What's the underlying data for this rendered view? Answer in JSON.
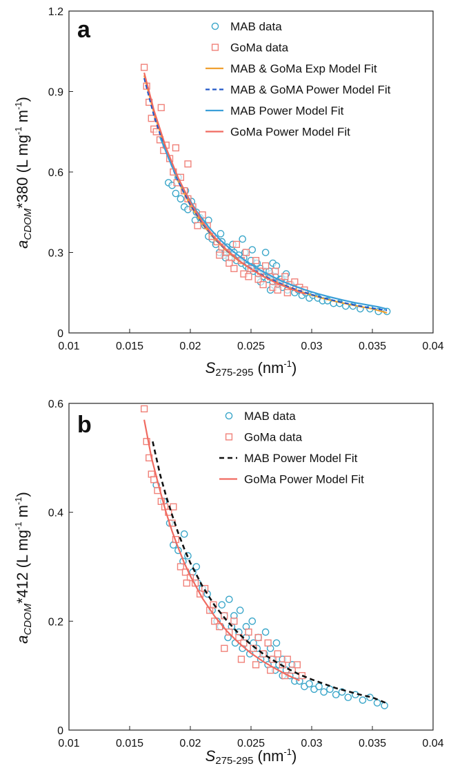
{
  "chart_data": [
    {
      "id": "a",
      "type": "scatter",
      "panel_label": "a",
      "xlabel": {
        "main": "S",
        "sub": "275-295",
        "unit_pre": " (nm",
        "unit_sup": "-1",
        "unit_post": ")"
      },
      "ylabel": {
        "main": "a",
        "sub": "CDOM",
        "rest": "*380 (L mg",
        "sup1": "-1",
        "mid": " m",
        "sup2": "-1",
        "end": ")"
      },
      "xlim": [
        0.01,
        0.04
      ],
      "ylim": [
        0,
        1.2
      ],
      "xticks": [
        "0.01",
        "0.015",
        "0.02",
        "0.025",
        "0.03",
        "0.035",
        "0.04"
      ],
      "xtick_values": [
        0.01,
        0.015,
        0.02,
        0.025,
        0.03,
        0.035,
        0.04
      ],
      "yticks": [
        "0",
        "0.3",
        "0.6",
        "0.9",
        "1.2"
      ],
      "ytick_values": [
        0,
        0.3,
        0.6,
        0.9,
        1.2
      ],
      "legend_position": "top-right",
      "grid": false,
      "series": [
        {
          "name": "MAB data",
          "kind": "scatter",
          "marker": "circle",
          "color": "#3aa6c9",
          "x": [
            0.0182,
            0.0185,
            0.0188,
            0.019,
            0.0192,
            0.0195,
            0.0198,
            0.0201,
            0.0204,
            0.0208,
            0.0212,
            0.0215,
            0.0218,
            0.0221,
            0.0224,
            0.0226,
            0.0228,
            0.023,
            0.0232,
            0.0234,
            0.0236,
            0.0238,
            0.024,
            0.0242,
            0.0244,
            0.0246,
            0.0248,
            0.025,
            0.0252,
            0.0254,
            0.0256,
            0.0258,
            0.026,
            0.0262,
            0.0264,
            0.0266,
            0.0268,
            0.027,
            0.0272,
            0.0274,
            0.0276,
            0.0278,
            0.028,
            0.0283,
            0.0286,
            0.0289,
            0.0292,
            0.0295,
            0.0298,
            0.0301,
            0.0305,
            0.0309,
            0.0313,
            0.0318,
            0.0323,
            0.0328,
            0.0334,
            0.034,
            0.0348,
            0.0355,
            0.0362,
            0.0225,
            0.0235,
            0.0245,
            0.0255,
            0.0265,
            0.0275,
            0.0285,
            0.0215,
            0.0205,
            0.0196,
            0.0262,
            0.0268,
            0.0251,
            0.0243,
            0.0229,
            0.0271,
            0.0279,
            0.0258,
            0.0266
          ],
          "y": [
            0.56,
            0.55,
            0.52,
            0.58,
            0.5,
            0.47,
            0.46,
            0.49,
            0.42,
            0.43,
            0.4,
            0.36,
            0.35,
            0.33,
            0.3,
            0.34,
            0.29,
            0.32,
            0.28,
            0.31,
            0.3,
            0.27,
            0.29,
            0.26,
            0.28,
            0.25,
            0.24,
            0.27,
            0.23,
            0.26,
            0.22,
            0.24,
            0.21,
            0.23,
            0.2,
            0.22,
            0.19,
            0.21,
            0.18,
            0.2,
            0.17,
            0.19,
            0.16,
            0.18,
            0.15,
            0.16,
            0.14,
            0.15,
            0.13,
            0.14,
            0.13,
            0.12,
            0.12,
            0.11,
            0.11,
            0.1,
            0.1,
            0.09,
            0.09,
            0.08,
            0.08,
            0.37,
            0.33,
            0.3,
            0.26,
            0.23,
            0.2,
            0.17,
            0.42,
            0.45,
            0.53,
            0.3,
            0.26,
            0.31,
            0.35,
            0.28,
            0.25,
            0.22,
            0.19,
            0.16
          ]
        },
        {
          "name": "GoMa data",
          "kind": "scatter",
          "marker": "square",
          "color": "#f08078",
          "x": [
            0.0162,
            0.0164,
            0.0166,
            0.0168,
            0.017,
            0.0172,
            0.0175,
            0.0178,
            0.018,
            0.0183,
            0.0186,
            0.0189,
            0.0192,
            0.0195,
            0.0198,
            0.0202,
            0.0206,
            0.021,
            0.0214,
            0.0218,
            0.0222,
            0.0226,
            0.023,
            0.0234,
            0.0238,
            0.0242,
            0.0246,
            0.025,
            0.0254,
            0.0258,
            0.0262,
            0.0266,
            0.027,
            0.0274,
            0.0278,
            0.0282,
            0.0286,
            0.029,
            0.0294,
            0.0232,
            0.0244,
            0.0256,
            0.0268,
            0.028,
            0.0224,
            0.0236,
            0.0248,
            0.026,
            0.0272,
            0.0198,
            0.0188,
            0.0176
          ],
          "y": [
            0.99,
            0.92,
            0.86,
            0.8,
            0.76,
            0.75,
            0.72,
            0.68,
            0.7,
            0.65,
            0.6,
            0.56,
            0.58,
            0.53,
            0.5,
            0.47,
            0.4,
            0.44,
            0.4,
            0.36,
            0.34,
            0.32,
            0.3,
            0.28,
            0.33,
            0.27,
            0.3,
            0.24,
            0.27,
            0.23,
            0.25,
            0.21,
            0.23,
            0.19,
            0.21,
            0.18,
            0.19,
            0.17,
            0.16,
            0.26,
            0.22,
            0.2,
            0.17,
            0.15,
            0.29,
            0.24,
            0.21,
            0.18,
            0.16,
            0.63,
            0.69,
            0.84
          ]
        },
        {
          "name": "MAB & GoMa Exp Model Fit",
          "kind": "line",
          "color": "#f0a030",
          "dash": "",
          "width": 2.2,
          "x": [
            0.0162,
            0.017,
            0.018,
            0.019,
            0.02,
            0.021,
            0.022,
            0.023,
            0.024,
            0.025,
            0.026,
            0.027,
            0.028,
            0.029,
            0.03,
            0.031,
            0.032,
            0.033,
            0.034,
            0.035,
            0.0362
          ],
          "y": [
            0.96,
            0.82,
            0.68,
            0.565,
            0.475,
            0.405,
            0.35,
            0.305,
            0.268,
            0.238,
            0.212,
            0.19,
            0.171,
            0.155,
            0.141,
            0.128,
            0.117,
            0.107,
            0.098,
            0.09,
            0.075
          ]
        },
        {
          "name": "MAB & GoMA Power Model Fit",
          "kind": "line",
          "color": "#2158c8",
          "dash": "6,4",
          "width": 2.2,
          "x": [
            0.0162,
            0.017,
            0.018,
            0.019,
            0.02,
            0.021,
            0.022,
            0.023,
            0.024,
            0.025,
            0.026,
            0.027,
            0.028,
            0.029,
            0.03,
            0.031,
            0.032,
            0.033,
            0.034,
            0.035,
            0.0362
          ],
          "y": [
            0.95,
            0.81,
            0.675,
            0.565,
            0.478,
            0.408,
            0.352,
            0.307,
            0.27,
            0.24,
            0.214,
            0.192,
            0.173,
            0.157,
            0.143,
            0.13,
            0.119,
            0.109,
            0.1,
            0.092,
            0.084
          ]
        },
        {
          "name": "MAB Power Model Fit",
          "kind": "line",
          "color": "#3a9fd8",
          "dash": "",
          "width": 2.2,
          "x": [
            0.0175,
            0.0185,
            0.0195,
            0.0205,
            0.0215,
            0.0225,
            0.0235,
            0.0245,
            0.0255,
            0.0265,
            0.0275,
            0.0285,
            0.0295,
            0.0305,
            0.0315,
            0.0325,
            0.0335,
            0.0345,
            0.0355,
            0.0362
          ],
          "y": [
            0.73,
            0.62,
            0.53,
            0.455,
            0.395,
            0.345,
            0.305,
            0.27,
            0.241,
            0.216,
            0.194,
            0.176,
            0.16,
            0.146,
            0.134,
            0.123,
            0.113,
            0.105,
            0.097,
            0.089
          ]
        },
        {
          "name": "GoMa Power Model Fit",
          "kind": "line",
          "color": "#f06a60",
          "dash": "",
          "width": 2.2,
          "x": [
            0.0162,
            0.017,
            0.018,
            0.019,
            0.02,
            0.021,
            0.022,
            0.023,
            0.024,
            0.025,
            0.026,
            0.027,
            0.028,
            0.029,
            0.0295
          ],
          "y": [
            0.97,
            0.83,
            0.69,
            0.578,
            0.487,
            0.414,
            0.356,
            0.309,
            0.27,
            0.238,
            0.211,
            0.188,
            0.169,
            0.152,
            0.145
          ]
        }
      ]
    },
    {
      "id": "b",
      "type": "scatter",
      "panel_label": "b",
      "xlabel": {
        "main": "S",
        "sub": "275-295",
        "unit_pre": " (nm",
        "unit_sup": "-1",
        "unit_post": ")"
      },
      "ylabel": {
        "main": "a",
        "sub": "CDOM",
        "rest": "*412 (L mg",
        "sup1": "-1",
        "mid": " m",
        "sup2": "-1",
        "end": ")"
      },
      "xlim": [
        0.01,
        0.04
      ],
      "ylim": [
        0,
        0.6
      ],
      "xticks": [
        "0.01",
        "0.015",
        "0.02",
        "0.025",
        "0.03",
        "0.035",
        "0.04"
      ],
      "xtick_values": [
        0.01,
        0.015,
        0.02,
        0.025,
        0.03,
        0.035,
        0.04
      ],
      "yticks": [
        "0",
        "0.2",
        "0.4",
        "0.6"
      ],
      "ytick_values": [
        0,
        0.2,
        0.4,
        0.6
      ],
      "legend_position": "top-right",
      "grid": false,
      "series": [
        {
          "name": "MAB data",
          "kind": "scatter",
          "marker": "circle",
          "color": "#3aa6c9",
          "x": [
            0.0172,
            0.0178,
            0.0183,
            0.0186,
            0.019,
            0.0194,
            0.0198,
            0.0202,
            0.0206,
            0.021,
            0.0214,
            0.0218,
            0.0222,
            0.0225,
            0.0228,
            0.0231,
            0.0234,
            0.0237,
            0.024,
            0.0243,
            0.0246,
            0.0249,
            0.0252,
            0.0255,
            0.0258,
            0.0261,
            0.0264,
            0.0267,
            0.027,
            0.0273,
            0.0276,
            0.0279,
            0.0282,
            0.0286,
            0.029,
            0.0294,
            0.0298,
            0.0302,
            0.0306,
            0.031,
            0.0315,
            0.032,
            0.0325,
            0.033,
            0.0336,
            0.0342,
            0.0348,
            0.0354,
            0.036,
            0.0226,
            0.0236,
            0.0246,
            0.0256,
            0.0266,
            0.0276,
            0.0205,
            0.0195,
            0.0262,
            0.0251,
            0.0241,
            0.0232,
            0.0271,
            0.0284
          ],
          "y": [
            0.45,
            0.42,
            0.38,
            0.34,
            0.33,
            0.31,
            0.32,
            0.29,
            0.27,
            0.26,
            0.25,
            0.22,
            0.2,
            0.19,
            0.21,
            0.17,
            0.19,
            0.16,
            0.18,
            0.15,
            0.17,
            0.14,
            0.16,
            0.15,
            0.13,
            0.14,
            0.12,
            0.13,
            0.11,
            0.12,
            0.1,
            0.11,
            0.1,
            0.09,
            0.09,
            0.08,
            0.085,
            0.075,
            0.08,
            0.07,
            0.075,
            0.065,
            0.07,
            0.06,
            0.065,
            0.055,
            0.06,
            0.05,
            0.045,
            0.23,
            0.21,
            0.19,
            0.17,
            0.15,
            0.13,
            0.3,
            0.36,
            0.18,
            0.2,
            0.22,
            0.24,
            0.16,
            0.12
          ]
        },
        {
          "name": "GoMa data",
          "kind": "scatter",
          "marker": "square",
          "color": "#f08078",
          "x": [
            0.0162,
            0.0164,
            0.0166,
            0.0168,
            0.017,
            0.0173,
            0.0176,
            0.0179,
            0.0182,
            0.0185,
            0.0188,
            0.0192,
            0.0196,
            0.02,
            0.0204,
            0.0208,
            0.0212,
            0.0216,
            0.022,
            0.0224,
            0.0228,
            0.0232,
            0.0236,
            0.024,
            0.0244,
            0.0248,
            0.0252,
            0.0256,
            0.026,
            0.0264,
            0.0268,
            0.0272,
            0.0276,
            0.028,
            0.0284,
            0.0288,
            0.0292,
            0.0228,
            0.0242,
            0.0254,
            0.0266,
            0.0278,
            0.0186,
            0.0197,
            0.0219
          ],
          "y": [
            0.59,
            0.53,
            0.5,
            0.47,
            0.46,
            0.44,
            0.42,
            0.41,
            0.4,
            0.38,
            0.35,
            0.3,
            0.29,
            0.28,
            0.27,
            0.25,
            0.26,
            0.22,
            0.2,
            0.19,
            0.21,
            0.18,
            0.2,
            0.17,
            0.16,
            0.18,
            0.15,
            0.17,
            0.14,
            0.16,
            0.13,
            0.14,
            0.12,
            0.13,
            0.11,
            0.12,
            0.1,
            0.15,
            0.13,
            0.12,
            0.11,
            0.1,
            0.41,
            0.27,
            0.23
          ]
        },
        {
          "name": "MAB Power Model Fit",
          "kind": "line",
          "color": "#111111",
          "dash": "7,5",
          "width": 2.6,
          "x": [
            0.0169,
            0.0175,
            0.018,
            0.0185,
            0.019,
            0.0195,
            0.02,
            0.021,
            0.022,
            0.023,
            0.024,
            0.025,
            0.026,
            0.027,
            0.028,
            0.029,
            0.03,
            0.031,
            0.032,
            0.033,
            0.034,
            0.035,
            0.0361
          ],
          "y": [
            0.53,
            0.47,
            0.43,
            0.395,
            0.362,
            0.333,
            0.307,
            0.264,
            0.229,
            0.201,
            0.177,
            0.157,
            0.14,
            0.126,
            0.113,
            0.102,
            0.093,
            0.085,
            0.077,
            0.071,
            0.065,
            0.06,
            0.05
          ]
        },
        {
          "name": "GoMa Power Model Fit",
          "kind": "line",
          "color": "#f06a60",
          "dash": "",
          "width": 2.2,
          "x": [
            0.0162,
            0.0168,
            0.0175,
            0.018,
            0.0185,
            0.019,
            0.0195,
            0.02,
            0.021,
            0.022,
            0.023,
            0.024,
            0.025,
            0.026,
            0.027,
            0.028,
            0.029
          ],
          "y": [
            0.57,
            0.5,
            0.44,
            0.4,
            0.365,
            0.335,
            0.307,
            0.283,
            0.242,
            0.209,
            0.182,
            0.16,
            0.141,
            0.126,
            0.113,
            0.101,
            0.091
          ]
        }
      ]
    }
  ]
}
